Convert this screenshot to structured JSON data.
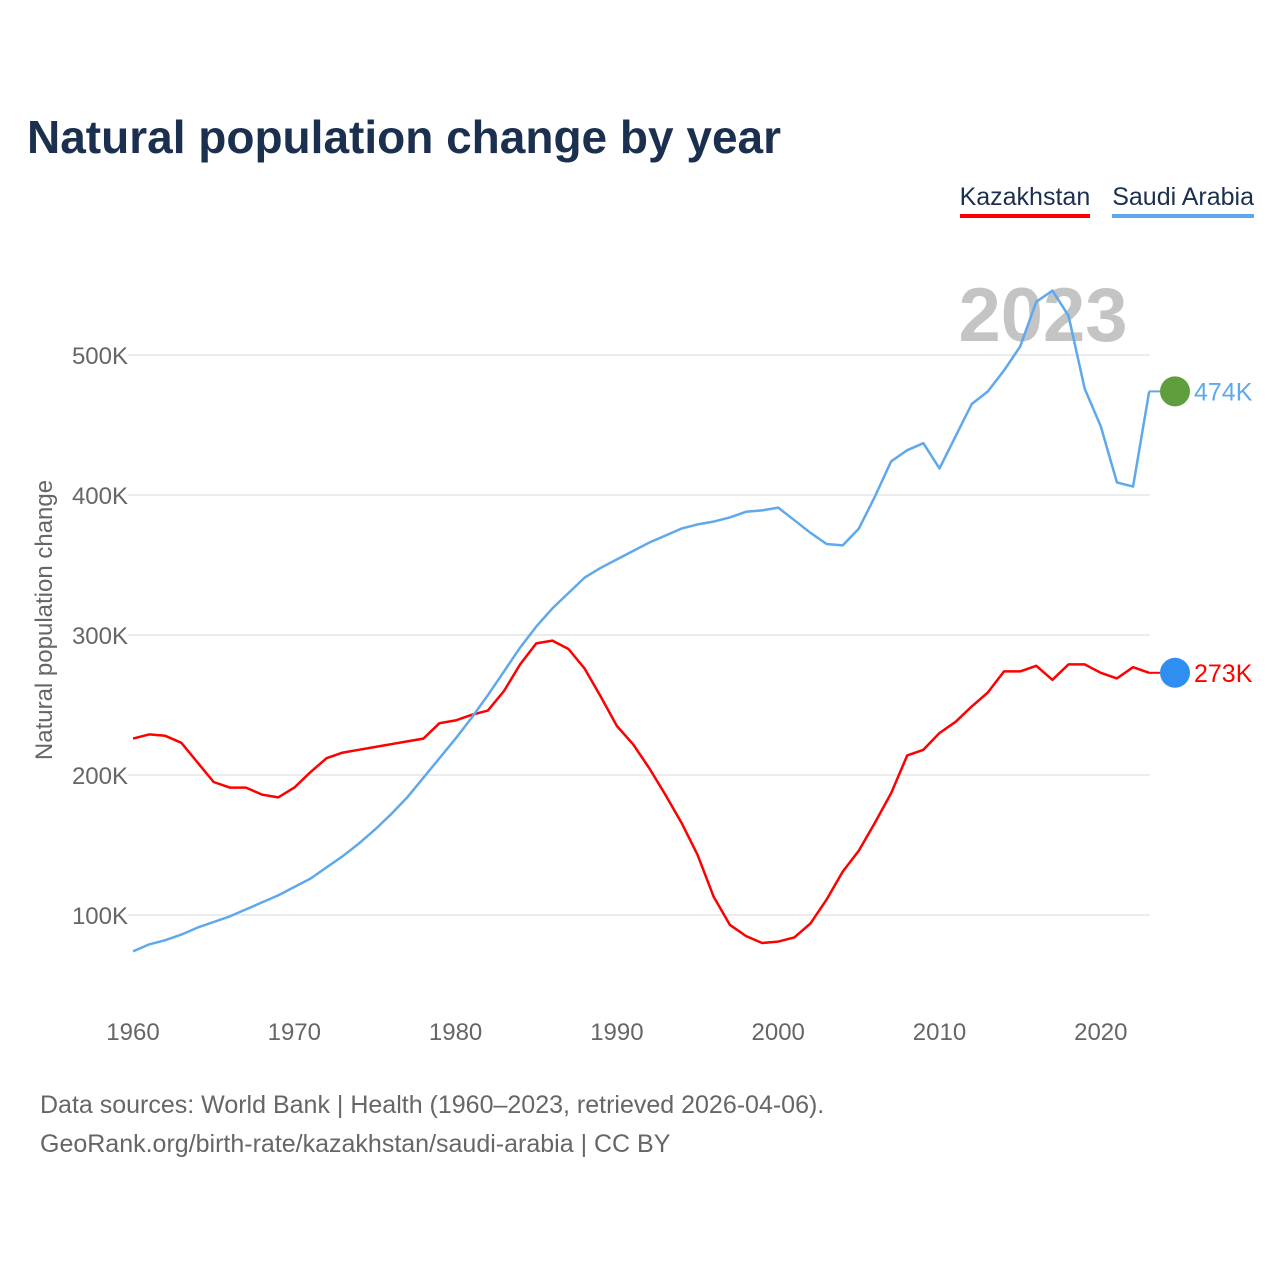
{
  "title": "Natural population change by year",
  "legend": [
    {
      "name": "Kazakhstan",
      "color": "#ff0000"
    },
    {
      "name": "Saudi Arabia",
      "color": "#5ea8ec"
    }
  ],
  "year_watermark": "2023",
  "footer": {
    "line1": "Data sources: World Bank | Health (1960–2023, retrieved 2026-04-06).",
    "line2": "GeoRank.org/birth-rate/kazakhstan/saudi-arabia | CC BY"
  },
  "chart_data": {
    "type": "line",
    "title": "Natural population change by year",
    "xlabel": "",
    "ylabel": "Natural population change",
    "xlim": [
      1960,
      2023
    ],
    "ylim": [
      45000,
      565000
    ],
    "x_ticks": [
      1960,
      1970,
      1980,
      1990,
      2000,
      2010,
      2020
    ],
    "y_ticks": [
      100000,
      200000,
      300000,
      400000,
      500000
    ],
    "y_tick_labels": [
      "100K",
      "200K",
      "300K",
      "400K",
      "500K"
    ],
    "grid": true,
    "legend_position": "top-right",
    "x": [
      1960,
      1961,
      1962,
      1963,
      1964,
      1965,
      1966,
      1967,
      1968,
      1969,
      1970,
      1971,
      1972,
      1973,
      1974,
      1975,
      1976,
      1977,
      1978,
      1979,
      1980,
      1981,
      1982,
      1983,
      1984,
      1985,
      1986,
      1987,
      1988,
      1989,
      1990,
      1991,
      1992,
      1993,
      1994,
      1995,
      1996,
      1997,
      1998,
      1999,
      2000,
      2001,
      2002,
      2003,
      2004,
      2005,
      2006,
      2007,
      2008,
      2009,
      2010,
      2011,
      2012,
      2013,
      2014,
      2015,
      2016,
      2017,
      2018,
      2019,
      2020,
      2021,
      2022,
      2023
    ],
    "series": [
      {
        "name": "Kazakhstan",
        "color": "#ff0000",
        "end_label": "273K",
        "flag_color": "#2f8ef0",
        "values": [
          226,
          229,
          228,
          223,
          209,
          195,
          191,
          191,
          186,
          184,
          191,
          202,
          212,
          216,
          218,
          220,
          222,
          224,
          226,
          237,
          239,
          243,
          246,
          260,
          279,
          294,
          296,
          290,
          276,
          256,
          235,
          222,
          205,
          186,
          166,
          143,
          113,
          93,
          85,
          80,
          81,
          84,
          94,
          111,
          131,
          146,
          166,
          187,
          214,
          218,
          230,
          238,
          249,
          259,
          274,
          274,
          278,
          268,
          279,
          279,
          273,
          269,
          277,
          273
        ]
      },
      {
        "name": "Saudi Arabia",
        "color": "#5ea8ec",
        "end_label": "474K",
        "flag_color": "#5f9e3d",
        "values": [
          74,
          79,
          82,
          86,
          91,
          95,
          99,
          104,
          109,
          114,
          120,
          126,
          134,
          142,
          151,
          161,
          172,
          184,
          198,
          212,
          226,
          241,
          257,
          274,
          291,
          306,
          319,
          330,
          341,
          348,
          354,
          360,
          366,
          371,
          376,
          379,
          381,
          384,
          388,
          389,
          391,
          382,
          373,
          365,
          364,
          376,
          399,
          424,
          432,
          437,
          419,
          442,
          465,
          474,
          489,
          506,
          538,
          546,
          528,
          476,
          449,
          409,
          406,
          474
        ]
      }
    ],
    "value_unit": "thousands"
  }
}
